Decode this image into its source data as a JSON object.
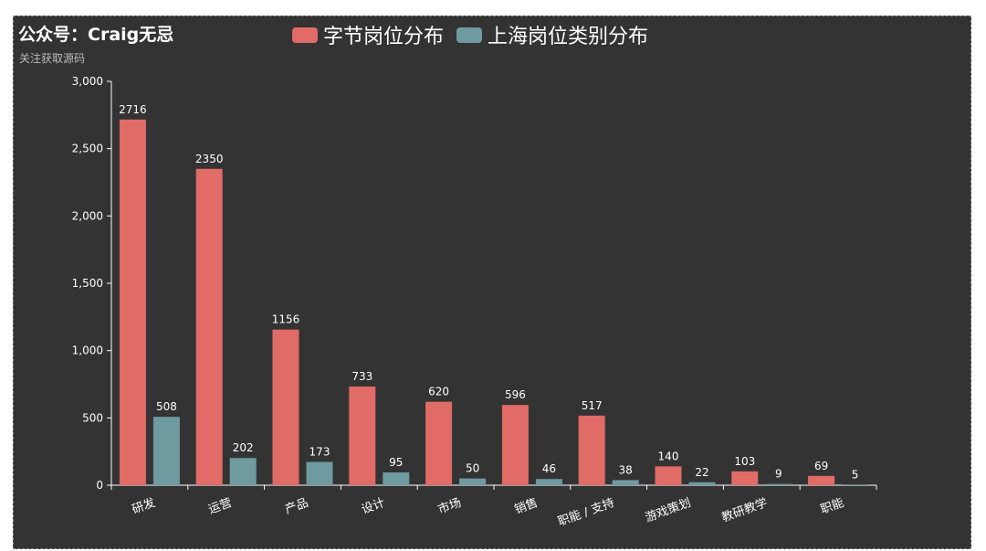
{
  "chart_data": {
    "type": "bar",
    "title": "公众号：Craig无忌",
    "subtitle": "关注获取源码",
    "categories": [
      "研发",
      "运营",
      "产品",
      "设计",
      "市场",
      "销售",
      "职能 / 支持",
      "游戏策划",
      "教研教学",
      "职能"
    ],
    "series": [
      {
        "name": "字节岗位分布",
        "color": "#e06b67",
        "values": [
          2716,
          2350,
          1156,
          733,
          620,
          596,
          517,
          140,
          103,
          69
        ]
      },
      {
        "name": "上海岗位类别分布",
        "color": "#6e9aa0",
        "values": [
          508,
          202,
          173,
          95,
          50,
          46,
          38,
          22,
          9,
          5
        ]
      }
    ],
    "yticks": [
      "0",
      "500",
      "1,000",
      "1,500",
      "2,000",
      "2,500",
      "3,000"
    ],
    "ylim": [
      0,
      3000
    ],
    "grid": false,
    "legend_position": "top-center"
  }
}
